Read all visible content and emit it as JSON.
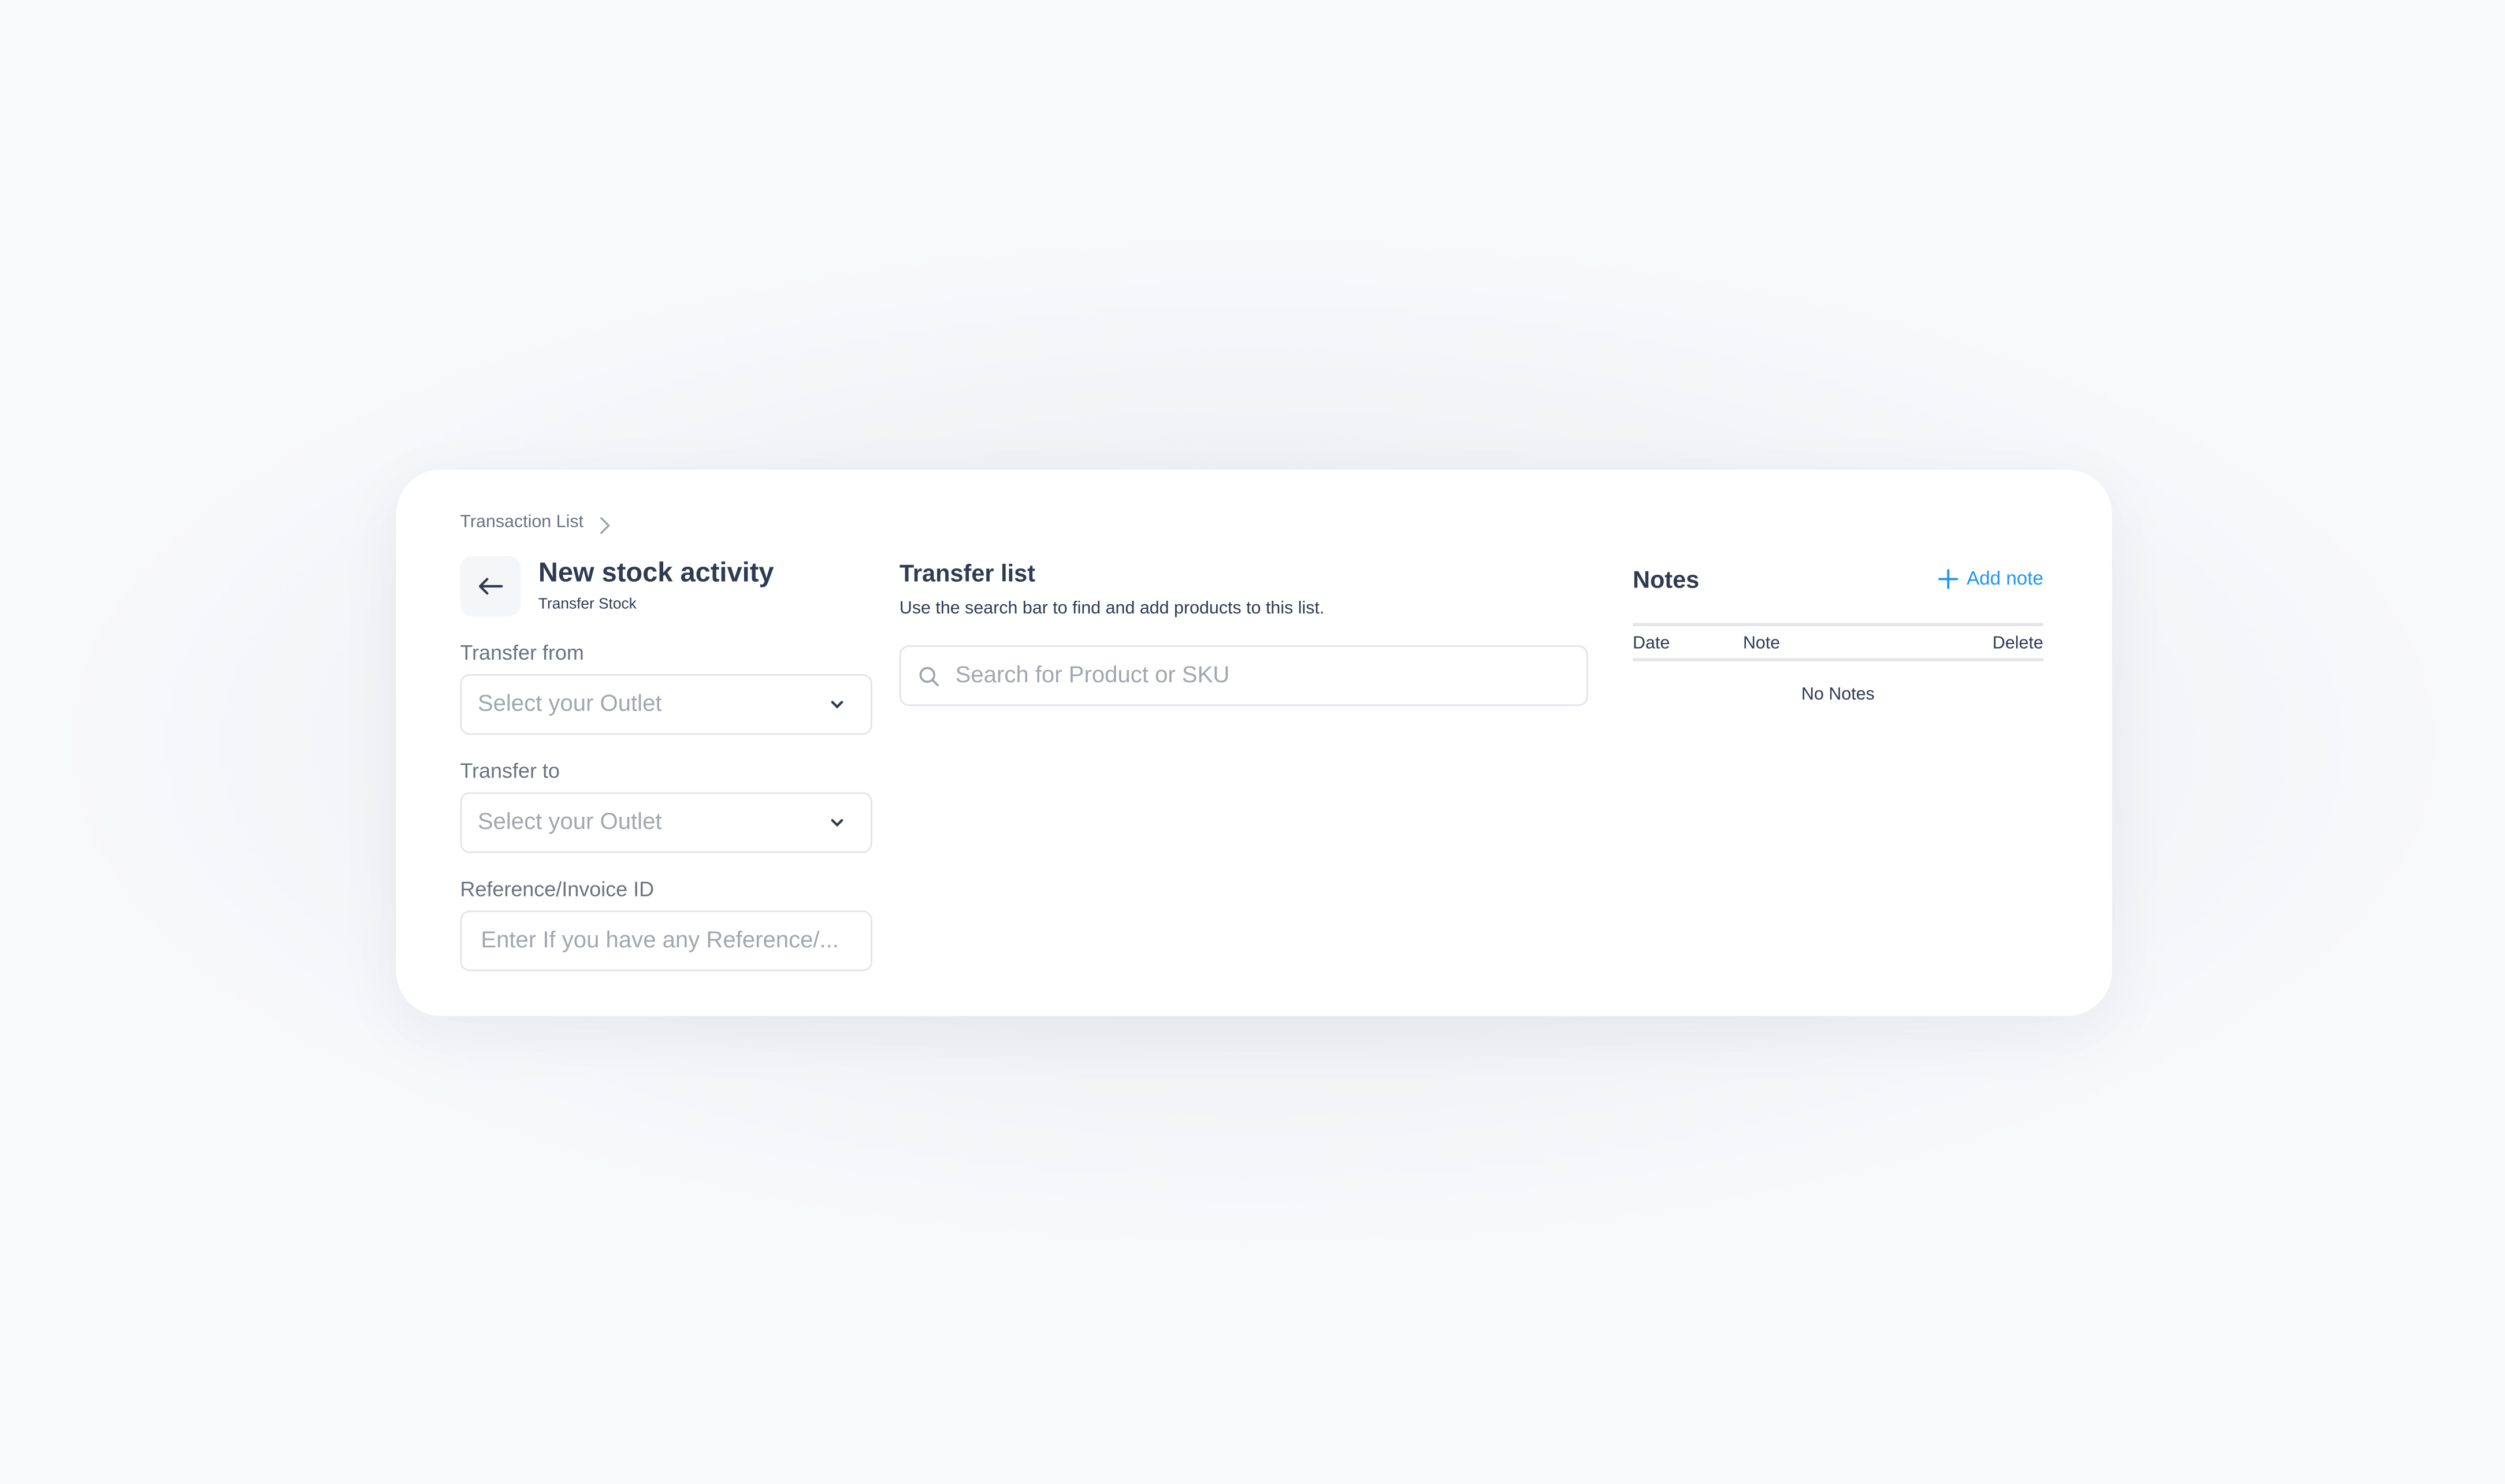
{
  "breadcrumb": {
    "items": [
      "Transaction List"
    ]
  },
  "header": {
    "title": "New stock activity",
    "subtitle": "Transfer Stock"
  },
  "form": {
    "transfer_from": {
      "label": "Transfer from",
      "placeholder": "Select your Outlet"
    },
    "transfer_to": {
      "label": "Transfer to",
      "placeholder": "Select your Outlet"
    },
    "reference": {
      "label": "Reference/Invoice ID",
      "placeholder": "Enter If you have any Reference/..."
    }
  },
  "transfer_list": {
    "title": "Transfer list",
    "description": "Use the search bar to find and add products to this list.",
    "search_placeholder": "Search for Product or SKU"
  },
  "notes": {
    "title": "Notes",
    "add_label": "Add note",
    "columns": [
      "Date",
      "Note",
      "Delete"
    ],
    "empty_text": "No Notes"
  },
  "colors": {
    "accent": "#2196f3",
    "heading": "#2f3b52"
  }
}
